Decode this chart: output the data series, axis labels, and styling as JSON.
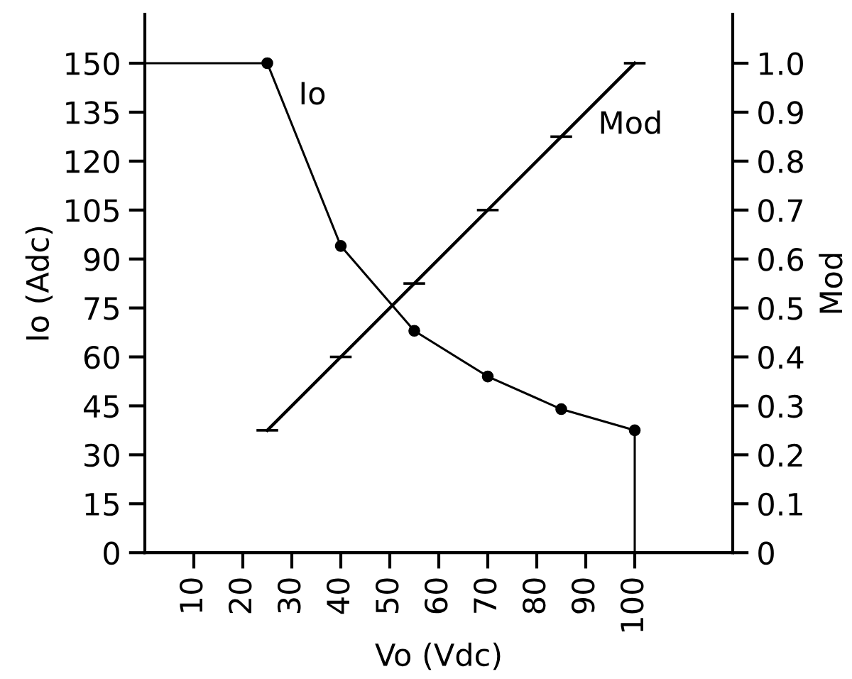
{
  "chart_data": {
    "type": "line",
    "xlabel": "Vo (Vdc)",
    "ylabel": "Io (Adc)",
    "y2label": "Mod",
    "xlim": [
      0,
      120
    ],
    "xticks": [
      10,
      20,
      30,
      40,
      50,
      60,
      70,
      80,
      90,
      100
    ],
    "ylim": [
      0,
      165
    ],
    "yticks": [
      0,
      15,
      30,
      45,
      60,
      75,
      90,
      105,
      120,
      135,
      150
    ],
    "y2lim": [
      0,
      1.1
    ],
    "y2ticks": [
      0,
      0.1,
      0.2,
      0.3,
      0.4,
      0.5,
      0.6,
      0.7,
      0.8,
      0.9,
      {
        "value": 1,
        "label": "1.0"
      }
    ],
    "series": [
      {
        "name": "Io",
        "color": "#000000",
        "marker": "circle",
        "x": [
          25,
          40,
          55,
          70,
          85,
          100
        ],
        "values": [
          150,
          94,
          68,
          54,
          44,
          37.5
        ]
      },
      {
        "color": "#000000",
        "x": [
          0,
          25
        ],
        "values": [
          150,
          150
        ]
      },
      {
        "color": "#000000",
        "x": [
          100,
          100
        ],
        "values": [
          37.5,
          0
        ]
      },
      {
        "name": "Mod",
        "color": "#000000",
        "axis": "y2",
        "x": [
          25,
          40,
          55,
          70,
          85,
          100
        ],
        "values": [
          0.25,
          0.4,
          0.55,
          0.7,
          0.85,
          1.0
        ]
      }
    ]
  }
}
